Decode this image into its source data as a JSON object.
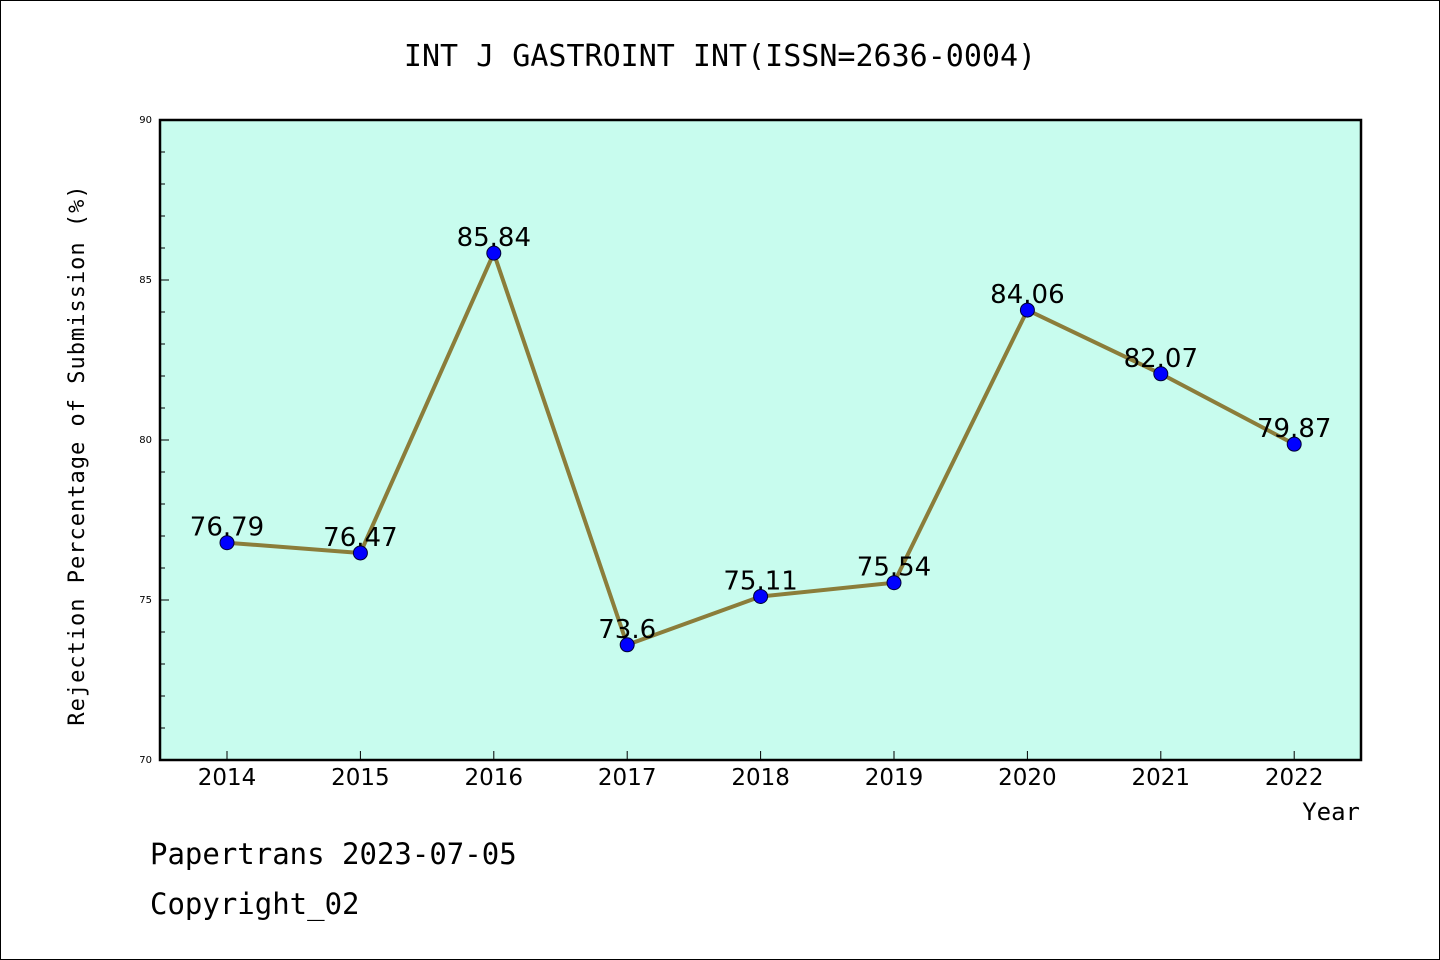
{
  "chart_data": {
    "type": "line",
    "title": "INT J GASTROINT INT(ISSN=2636-0004)",
    "xlabel": "Year",
    "ylabel": "Rejection Percentage of Submission (%)",
    "categories": [
      "2014",
      "2015",
      "2016",
      "2017",
      "2018",
      "2019",
      "2020",
      "2021",
      "2022"
    ],
    "values": [
      76.79,
      76.47,
      85.84,
      73.6,
      75.11,
      75.54,
      84.06,
      82.07,
      79.87
    ],
    "data_labels": [
      "76.79",
      "76.47",
      "85.84",
      "73.6",
      "75.11",
      "75.54",
      "84.06",
      "82.07",
      "79.87"
    ],
    "ylim": [
      70,
      90
    ],
    "yticks": [
      70,
      75,
      80,
      85,
      90
    ],
    "grid": false,
    "legend": "none",
    "colors": {
      "plot_background": "#c8fcee",
      "line": "#8b7d3a",
      "marker": "#0000ff"
    }
  },
  "footer": {
    "line1": "Papertrans 2023-07-05",
    "line2": "Copyright_02"
  }
}
